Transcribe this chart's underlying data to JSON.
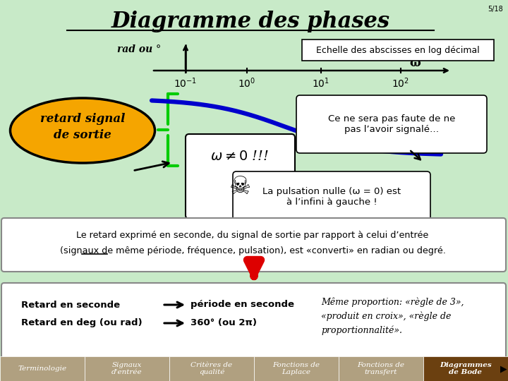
{
  "title": "Diagramme des phases",
  "slide_number": "5/18",
  "bg_color": "#c8eac8",
  "title_color": "#000000",
  "y_axis_label": "rad ou °",
  "omega_symbol": "ω",
  "echelle_box_text": "Echelle des abscisses en log décimal",
  "curve_color": "#0000cc",
  "ellipse_color": "#f5a500",
  "ellipse_text": "retard signal\nde sortie",
  "green_color": "#00cc00",
  "omega_neq_text": "ω ≠ 0 !!!",
  "skull": "☠",
  "box_ce_text": "Ce ne sera pas faute de ne\npas l’avoir signalé…",
  "box_puls_text": "La pulsation nulle (ω = 0) est\nà l’infini à gauche !",
  "middle_line1": "Le retard exprimé en seconde, du signal de sortie par rapport à celui d’entrée",
  "middle_line2": "(signaux de même période, fréquence, pulsation), est «converti» en radian ou degré.",
  "red_color": "#dd0000",
  "bot_l1": "Retard en seconde",
  "bot_l2": "Retard en deg (ou rad)",
  "bot_m1": "période en seconde",
  "bot_m2": "360° (ou 2π)",
  "bot_r1": "Même proportion: «règle de 3»,",
  "bot_r2": "«produit en croix», «règle de",
  "bot_r3": "proportionnalité».",
  "nav_bg": "#b0a080",
  "nav_active_bg": "#6b4010",
  "nav_items": [
    "Terminologie",
    "Signaux\nd'entrée",
    "Critères de\nqualité",
    "Fonctions de\nLaplace",
    "Fonctions de\ntransfert",
    "Diagrammes\nde Bode"
  ]
}
